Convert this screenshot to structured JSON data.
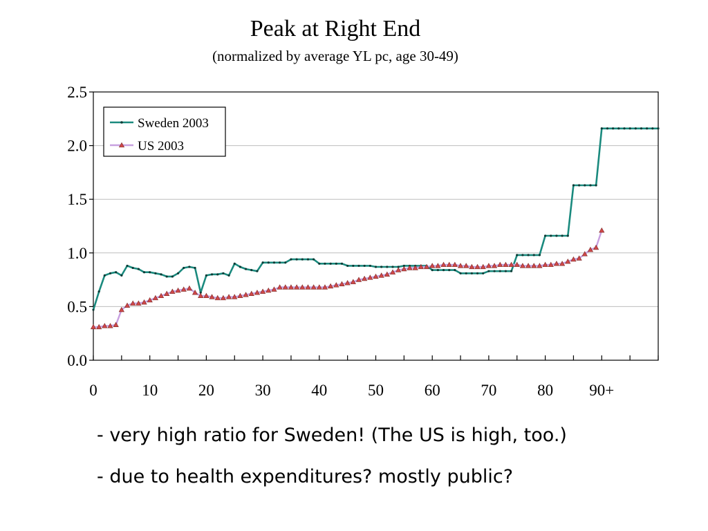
{
  "slide": {
    "title": "Peak at Right End",
    "subtitle": "(normalized by average YL pc, age 30-49)",
    "bullets": [
      "- very high ratio for Sweden! (The US is high, too.)",
      "- due to health expenditures? mostly public?"
    ]
  },
  "chart_data": {
    "type": "line",
    "xlabel": "",
    "ylabel": "",
    "xlim": [
      0,
      100
    ],
    "ylim": [
      0,
      2.5
    ],
    "x_ticks": [
      0,
      10,
      20,
      30,
      40,
      50,
      60,
      70,
      80,
      90
    ],
    "x_tick_labels": [
      "0",
      "10",
      "20",
      "30",
      "40",
      "50",
      "60",
      "70",
      "80",
      "90+"
    ],
    "y_ticks": [
      0,
      0.5,
      1.0,
      1.5,
      2.0,
      2.5
    ],
    "y_tick_labels": [
      "0.0",
      "0.5",
      "1.0",
      "1.5",
      "2.0",
      "2.5"
    ],
    "grid": "horizontal",
    "legend_position": "top-left",
    "series": [
      {
        "name": "Sweden 2003",
        "color": "#1a8a7e",
        "marker": "dot",
        "x": [
          0,
          1,
          2,
          3,
          4,
          5,
          6,
          7,
          8,
          9,
          10,
          11,
          12,
          13,
          14,
          15,
          16,
          17,
          18,
          19,
          20,
          21,
          22,
          23,
          24,
          25,
          26,
          27,
          28,
          29,
          30,
          31,
          32,
          33,
          34,
          35,
          36,
          37,
          38,
          39,
          40,
          41,
          42,
          43,
          44,
          45,
          46,
          47,
          48,
          49,
          50,
          51,
          52,
          53,
          54,
          55,
          56,
          57,
          58,
          59,
          60,
          61,
          62,
          63,
          64,
          65,
          66,
          67,
          68,
          69,
          70,
          71,
          72,
          73,
          74,
          75,
          76,
          77,
          78,
          79,
          80,
          81,
          82,
          83,
          84,
          85,
          86,
          87,
          88,
          89,
          90,
          91,
          92,
          93,
          94,
          95,
          96,
          97,
          98,
          99,
          100
        ],
        "y": [
          0.47,
          0.64,
          0.79,
          0.81,
          0.82,
          0.79,
          0.88,
          0.86,
          0.85,
          0.82,
          0.82,
          0.81,
          0.8,
          0.78,
          0.78,
          0.81,
          0.86,
          0.87,
          0.86,
          0.63,
          0.79,
          0.8,
          0.8,
          0.81,
          0.79,
          0.9,
          0.87,
          0.85,
          0.84,
          0.83,
          0.91,
          0.91,
          0.91,
          0.91,
          0.91,
          0.94,
          0.94,
          0.94,
          0.94,
          0.94,
          0.9,
          0.9,
          0.9,
          0.9,
          0.9,
          0.88,
          0.88,
          0.88,
          0.88,
          0.88,
          0.87,
          0.87,
          0.87,
          0.87,
          0.87,
          0.88,
          0.88,
          0.88,
          0.88,
          0.88,
          0.84,
          0.84,
          0.84,
          0.84,
          0.84,
          0.81,
          0.81,
          0.81,
          0.81,
          0.81,
          0.83,
          0.83,
          0.83,
          0.83,
          0.83,
          0.98,
          0.98,
          0.98,
          0.98,
          0.98,
          1.16,
          1.16,
          1.16,
          1.16,
          1.16,
          1.63,
          1.63,
          1.63,
          1.63,
          1.63,
          2.16,
          2.16,
          2.16,
          2.16,
          2.16,
          2.16,
          2.16,
          2.16,
          2.16,
          2.16,
          2.16
        ]
      },
      {
        "name": "US 2003",
        "color": "#c8a0e0",
        "marker": "triangle",
        "marker_color": "#d04848",
        "x": [
          0,
          1,
          2,
          3,
          4,
          5,
          6,
          7,
          8,
          9,
          10,
          11,
          12,
          13,
          14,
          15,
          16,
          17,
          18,
          19,
          20,
          21,
          22,
          23,
          24,
          25,
          26,
          27,
          28,
          29,
          30,
          31,
          32,
          33,
          34,
          35,
          36,
          37,
          38,
          39,
          40,
          41,
          42,
          43,
          44,
          45,
          46,
          47,
          48,
          49,
          50,
          51,
          52,
          53,
          54,
          55,
          56,
          57,
          58,
          59,
          60,
          61,
          62,
          63,
          64,
          65,
          66,
          67,
          68,
          69,
          70,
          71,
          72,
          73,
          74,
          75,
          76,
          77,
          78,
          79,
          80,
          81,
          82,
          83,
          84,
          85,
          86,
          87,
          88,
          89,
          90
        ],
        "y": [
          0.31,
          0.31,
          0.32,
          0.32,
          0.33,
          0.47,
          0.51,
          0.53,
          0.53,
          0.54,
          0.56,
          0.58,
          0.6,
          0.62,
          0.64,
          0.65,
          0.66,
          0.67,
          0.63,
          0.6,
          0.6,
          0.59,
          0.58,
          0.58,
          0.59,
          0.59,
          0.6,
          0.61,
          0.62,
          0.63,
          0.64,
          0.65,
          0.66,
          0.68,
          0.68,
          0.68,
          0.68,
          0.68,
          0.68,
          0.68,
          0.68,
          0.68,
          0.69,
          0.7,
          0.71,
          0.72,
          0.73,
          0.75,
          0.76,
          0.77,
          0.78,
          0.79,
          0.8,
          0.82,
          0.84,
          0.85,
          0.86,
          0.86,
          0.87,
          0.87,
          0.88,
          0.88,
          0.89,
          0.89,
          0.89,
          0.88,
          0.88,
          0.87,
          0.87,
          0.87,
          0.88,
          0.88,
          0.89,
          0.89,
          0.89,
          0.89,
          0.88,
          0.88,
          0.88,
          0.88,
          0.89,
          0.89,
          0.9,
          0.9,
          0.92,
          0.94,
          0.95,
          0.99,
          1.03,
          1.05,
          1.21
        ]
      }
    ]
  }
}
